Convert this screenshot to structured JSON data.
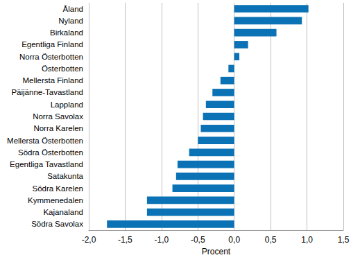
{
  "chart_data": {
    "type": "bar",
    "orientation": "horizontal",
    "x_label": "Procent",
    "categories": [
      "Åland",
      "Nyland",
      "Birkaland",
      "Egentliga Finland",
      "Norra Österbotten",
      "Österbotten",
      "Mellersta Finland",
      "Päijänne-Tavastland",
      "Lappland",
      "Norra Savolax",
      "Norra Karelen",
      "Mellersta Österbotten",
      "Södra Österbotten",
      "Egentliga Tavastland",
      "Satakunta",
      "Södra Karelen",
      "Kymmenedalen",
      "Kajanaland",
      "Södra Savolax"
    ],
    "values": [
      1.02,
      0.93,
      0.58,
      0.19,
      0.07,
      -0.08,
      -0.19,
      -0.3,
      -0.39,
      -0.43,
      -0.46,
      -0.5,
      -0.62,
      -0.78,
      -0.8,
      -0.85,
      -1.2,
      -1.2,
      -1.75
    ],
    "color": "#0a72b5",
    "xlim": [
      -2.0,
      1.5
    ],
    "xticks": [
      {
        "value": -2.0,
        "label": "-2,0"
      },
      {
        "value": -1.5,
        "label": "-1,5"
      },
      {
        "value": -1.0,
        "label": "-1,0"
      },
      {
        "value": -0.5,
        "label": "-0,5"
      },
      {
        "value": 0.0,
        "label": "0,0"
      },
      {
        "value": 0.5,
        "label": "0,5"
      },
      {
        "value": 1.0,
        "label": "1,0"
      },
      {
        "value": 1.5,
        "label": "1,5"
      }
    ],
    "grid": true
  }
}
